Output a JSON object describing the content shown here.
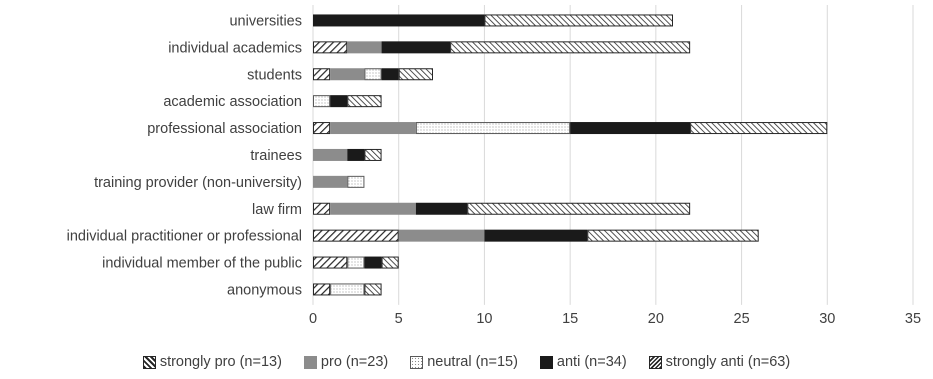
{
  "chart_data": {
    "type": "bar",
    "orientation": "horizontal",
    "stacked": true,
    "categories": [
      "universities",
      "individual academics",
      "students",
      "academic association",
      "professional association",
      "trainees",
      "training provider (non-university)",
      "law firm",
      "individual practitioner or professional",
      "individual member of the public",
      "anonymous"
    ],
    "series": [
      {
        "name": "strongly pro (n=13)",
        "pattern": "strongly-pro",
        "values": [
          0,
          2,
          1,
          0,
          1,
          0,
          0,
          1,
          5,
          2,
          1
        ]
      },
      {
        "name": "pro (n=23)",
        "pattern": "pro",
        "values": [
          0,
          2,
          2,
          0,
          5,
          2,
          2,
          5,
          5,
          0,
          0
        ]
      },
      {
        "name": "neutral (n=15)",
        "pattern": "neutral",
        "values": [
          0,
          0,
          1,
          1,
          9,
          0,
          1,
          0,
          0,
          1,
          2
        ]
      },
      {
        "name": "anti (n=34)",
        "pattern": "anti",
        "values": [
          10,
          4,
          1,
          1,
          7,
          1,
          0,
          3,
          6,
          1,
          0
        ]
      },
      {
        "name": "strongly anti (n=63)",
        "pattern": "strongly-anti",
        "values": [
          11,
          14,
          2,
          2,
          8,
          1,
          0,
          13,
          10,
          1,
          1
        ]
      }
    ],
    "xlim": [
      0,
      35
    ],
    "xticks": [
      "0",
      "5",
      "10",
      "15",
      "20",
      "25",
      "30",
      "35"
    ],
    "grid": "vertical",
    "legend_position": "bottom",
    "colors": {
      "pro": "#8c8c8c",
      "anti": "#1a1a1a",
      "hatch": "#262626",
      "grid": "#d9d9d9",
      "text": "#404040"
    }
  }
}
